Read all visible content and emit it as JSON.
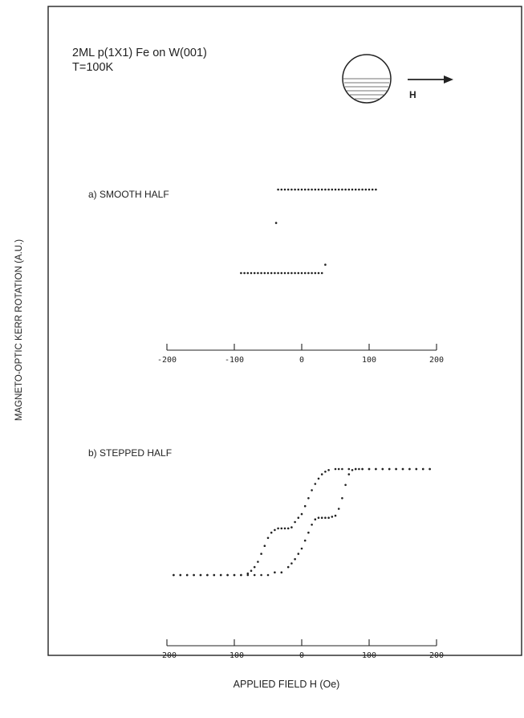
{
  "figure": {
    "sample_title": "2ML p(1X1) Fe on W(001)",
    "temperature": "T=100K",
    "field_symbol": "H",
    "ylabel": "MAGNETO-OPTIC KERR ROTATION (A.U.)",
    "xlabel": "APPLIED FIELD H  (Oe)"
  },
  "chart_data": [
    {
      "type": "scatter",
      "panel_label": "a) SMOOTH HALF",
      "xlim": [
        -200,
        200
      ],
      "ticks": [
        -200,
        -100,
        0,
        100,
        200
      ],
      "tick_labels": [
        "-200",
        "-100",
        "0",
        "100",
        "200"
      ],
      "series": [
        {
          "branch": "upper",
          "points": [
            [
              -38,
              0.2
            ],
            [
              -35,
              1.0
            ],
            [
              -30,
              1.0
            ],
            [
              -25,
              1.0
            ],
            [
              -20,
              1.0
            ],
            [
              -15,
              1.0
            ],
            [
              -10,
              1.0
            ],
            [
              -5,
              1.0
            ],
            [
              0,
              1.0
            ],
            [
              5,
              1.0
            ],
            [
              10,
              1.0
            ],
            [
              15,
              1.0
            ],
            [
              20,
              1.0
            ],
            [
              25,
              1.0
            ],
            [
              30,
              1.0
            ],
            [
              35,
              1.0
            ],
            [
              40,
              1.0
            ],
            [
              45,
              1.0
            ],
            [
              50,
              1.0
            ],
            [
              55,
              1.0
            ],
            [
              60,
              1.0
            ],
            [
              65,
              1.0
            ],
            [
              70,
              1.0
            ],
            [
              75,
              1.0
            ],
            [
              80,
              1.0
            ],
            [
              85,
              1.0
            ],
            [
              90,
              1.0
            ],
            [
              95,
              1.0
            ],
            [
              100,
              1.0
            ],
            [
              105,
              1.0
            ],
            [
              110,
              1.0
            ]
          ]
        },
        {
          "branch": "lower",
          "points": [
            [
              -90,
              -1.0
            ],
            [
              -85,
              -1.0
            ],
            [
              -80,
              -1.0
            ],
            [
              -75,
              -1.0
            ],
            [
              -70,
              -1.0
            ],
            [
              -65,
              -1.0
            ],
            [
              -60,
              -1.0
            ],
            [
              -55,
              -1.0
            ],
            [
              -50,
              -1.0
            ],
            [
              -45,
              -1.0
            ],
            [
              -40,
              -1.0
            ],
            [
              -35,
              -1.0
            ],
            [
              -30,
              -1.0
            ],
            [
              -25,
              -1.0
            ],
            [
              -20,
              -1.0
            ],
            [
              -15,
              -1.0
            ],
            [
              -10,
              -1.0
            ],
            [
              -5,
              -1.0
            ],
            [
              0,
              -1.0
            ],
            [
              5,
              -1.0
            ],
            [
              10,
              -1.0
            ],
            [
              15,
              -1.0
            ],
            [
              20,
              -1.0
            ],
            [
              25,
              -1.0
            ],
            [
              30,
              -1.0
            ],
            [
              35,
              -0.8
            ]
          ]
        }
      ]
    },
    {
      "type": "scatter",
      "panel_label": "b) STEPPED HALF",
      "xlim": [
        -200,
        200
      ],
      "ticks": [
        -200,
        -100,
        0,
        100,
        200
      ],
      "tick_labels": [
        "-200",
        "-100",
        "0",
        "100",
        "200"
      ],
      "series": [
        {
          "branch": "increasing-field",
          "points": [
            [
              -190,
              -1.0
            ],
            [
              -180,
              -1.0
            ],
            [
              -170,
              -1.0
            ],
            [
              -160,
              -1.0
            ],
            [
              -150,
              -1.0
            ],
            [
              -140,
              -1.0
            ],
            [
              -130,
              -1.0
            ],
            [
              -120,
              -1.0
            ],
            [
              -110,
              -1.0
            ],
            [
              -100,
              -1.0
            ],
            [
              -90,
              -1.0
            ],
            [
              -80,
              -1.0
            ],
            [
              -70,
              -1.0
            ],
            [
              -60,
              -1.0
            ],
            [
              -50,
              -1.0
            ],
            [
              -40,
              -0.95
            ],
            [
              -30,
              -0.95
            ],
            [
              -20,
              -0.85
            ],
            [
              -15,
              -0.78
            ],
            [
              -10,
              -0.7
            ],
            [
              -5,
              -0.6
            ],
            [
              0,
              -0.5
            ],
            [
              5,
              -0.35
            ],
            [
              10,
              -0.2
            ],
            [
              15,
              -0.05
            ],
            [
              20,
              0.05
            ],
            [
              25,
              0.08
            ],
            [
              30,
              0.08
            ],
            [
              35,
              0.08
            ],
            [
              40,
              0.08
            ],
            [
              45,
              0.1
            ],
            [
              50,
              0.12
            ],
            [
              55,
              0.25
            ],
            [
              60,
              0.45
            ],
            [
              65,
              0.7
            ],
            [
              70,
              0.9
            ],
            [
              75,
              0.98
            ],
            [
              80,
              1.0
            ],
            [
              85,
              1.0
            ],
            [
              90,
              1.0
            ],
            [
              100,
              1.0
            ],
            [
              110,
              1.0
            ],
            [
              120,
              1.0
            ],
            [
              130,
              1.0
            ],
            [
              140,
              1.0
            ],
            [
              150,
              1.0
            ],
            [
              160,
              1.0
            ],
            [
              170,
              1.0
            ],
            [
              180,
              1.0
            ],
            [
              190,
              1.0
            ]
          ]
        },
        {
          "branch": "decreasing-field",
          "points": [
            [
              190,
              1.0
            ],
            [
              180,
              1.0
            ],
            [
              170,
              1.0
            ],
            [
              160,
              1.0
            ],
            [
              150,
              1.0
            ],
            [
              140,
              1.0
            ],
            [
              130,
              1.0
            ],
            [
              120,
              1.0
            ],
            [
              110,
              1.0
            ],
            [
              100,
              1.0
            ],
            [
              90,
              1.0
            ],
            [
              80,
              1.0
            ],
            [
              70,
              1.0
            ],
            [
              60,
              1.0
            ],
            [
              55,
              1.0
            ],
            [
              50,
              1.0
            ],
            [
              40,
              0.98
            ],
            [
              35,
              0.95
            ],
            [
              30,
              0.9
            ],
            [
              25,
              0.82
            ],
            [
              20,
              0.72
            ],
            [
              15,
              0.6
            ],
            [
              10,
              0.45
            ],
            [
              5,
              0.3
            ],
            [
              0,
              0.15
            ],
            [
              -5,
              0.08
            ],
            [
              -10,
              0.0
            ],
            [
              -15,
              -0.1
            ],
            [
              -20,
              -0.12
            ],
            [
              -25,
              -0.12
            ],
            [
              -30,
              -0.12
            ],
            [
              -35,
              -0.12
            ],
            [
              -40,
              -0.15
            ],
            [
              -45,
              -0.2
            ],
            [
              -50,
              -0.3
            ],
            [
              -55,
              -0.45
            ],
            [
              -60,
              -0.6
            ],
            [
              -65,
              -0.75
            ],
            [
              -70,
              -0.85
            ],
            [
              -75,
              -0.92
            ],
            [
              -80,
              -0.97
            ],
            [
              -90,
              -1.0
            ],
            [
              -100,
              -1.0
            ],
            [
              -110,
              -1.0
            ],
            [
              -120,
              -1.0
            ],
            [
              -130,
              -1.0
            ],
            [
              -140,
              -1.0
            ],
            [
              -150,
              -1.0
            ],
            [
              -160,
              -1.0
            ],
            [
              -170,
              -1.0
            ],
            [
              -180,
              -1.0
            ],
            [
              -190,
              -1.0
            ]
          ]
        }
      ]
    }
  ]
}
